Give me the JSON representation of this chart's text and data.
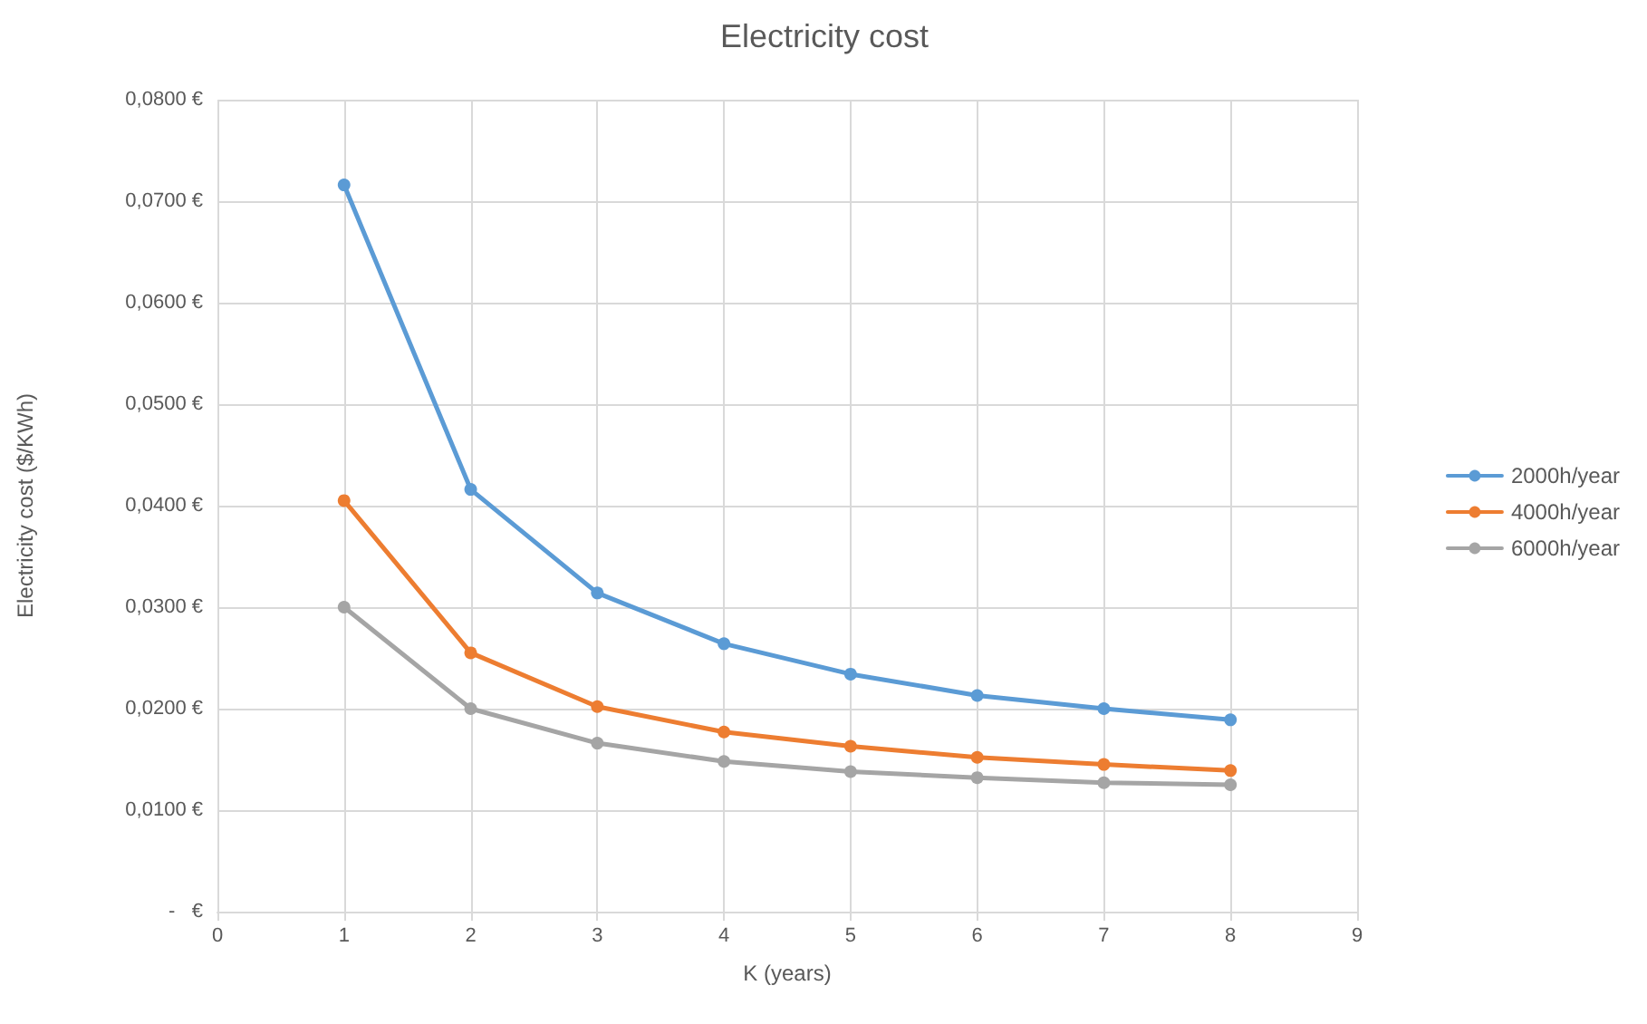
{
  "chart_data": {
    "type": "line",
    "title": "Electricity cost",
    "xlabel": "K (years)",
    "ylabel": "Electricity cost ($/KWh)",
    "x": [
      1,
      2,
      3,
      4,
      5,
      6,
      7,
      8
    ],
    "series": [
      {
        "name": "2000h/year",
        "color": "#5b9bd5",
        "values": [
          0.0716,
          0.0416,
          0.0314,
          0.0264,
          0.0234,
          0.0213,
          0.02,
          0.0189
        ]
      },
      {
        "name": "4000h/year",
        "color": "#ed7d31",
        "values": [
          0.0405,
          0.0255,
          0.0202,
          0.0177,
          0.0163,
          0.0152,
          0.0145,
          0.0139
        ]
      },
      {
        "name": "6000h/year",
        "color": "#a5a5a5",
        "values": [
          0.03,
          0.02,
          0.0166,
          0.0148,
          0.0138,
          0.0132,
          0.0127,
          0.0125
        ]
      }
    ],
    "xlim": [
      0,
      9
    ],
    "xticks": [
      0,
      1,
      2,
      3,
      4,
      5,
      6,
      7,
      8,
      9
    ],
    "ylim": [
      0,
      0.08
    ],
    "yticks": [
      {
        "value": 0,
        "label": "-   €"
      },
      {
        "value": 0.01,
        "label": "0,0100 €"
      },
      {
        "value": 0.02,
        "label": "0,0200 €"
      },
      {
        "value": 0.03,
        "label": "0,0300 €"
      },
      {
        "value": 0.04,
        "label": "0,0400 €"
      },
      {
        "value": 0.05,
        "label": "0,0500 €"
      },
      {
        "value": 0.06,
        "label": "0,0600 €"
      },
      {
        "value": 0.07,
        "label": "0,0700 €"
      },
      {
        "value": 0.08,
        "label": "0,0800 €"
      }
    ],
    "grid": true,
    "legend": "right",
    "marker": "circle",
    "line_style": "solid"
  }
}
